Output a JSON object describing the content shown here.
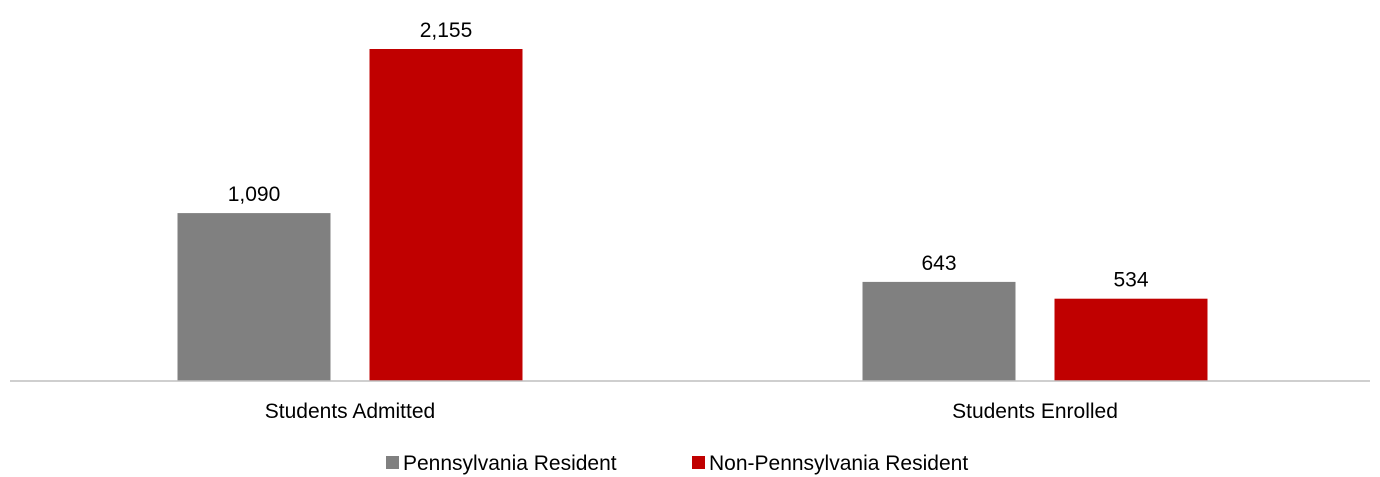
{
  "chart_data": {
    "type": "bar",
    "title": "",
    "xlabel": "",
    "ylabel": "",
    "categories": [
      "Students Admitted",
      "Students Enrolled"
    ],
    "series": [
      {
        "name": "Pennsylvania Resident",
        "values": [
          1090,
          643
        ],
        "labels": [
          "1,090",
          "643"
        ],
        "color": "#808080"
      },
      {
        "name": "Non-Pennsylvania Resident",
        "values": [
          2155,
          534
        ],
        "labels": [
          "2,155",
          "534"
        ],
        "color": "#c00000"
      }
    ],
    "ylim": [
      0,
      2155
    ],
    "grid": false,
    "legend": "bottom-center",
    "axis_color": "#bfbfbf"
  }
}
